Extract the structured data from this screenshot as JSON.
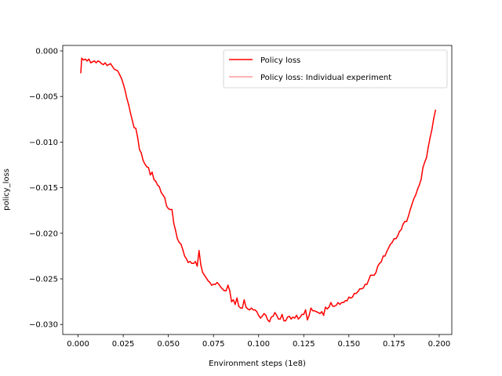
{
  "chart_data": {
    "type": "line",
    "title": "",
    "xlabel": "Environment steps (1e8)",
    "ylabel": "policy_loss",
    "xlim": [
      -0.0085,
      0.207
    ],
    "ylim": [
      -0.0311,
      0.0006
    ],
    "xticks": [
      "0.000",
      "0.025",
      "0.050",
      "0.075",
      "0.100",
      "0.125",
      "0.150",
      "0.175",
      "0.200"
    ],
    "xtick_values": [
      0,
      0.025,
      0.05,
      0.075,
      0.1,
      0.125,
      0.15,
      0.175,
      0.2
    ],
    "yticks": [
      "0.000",
      "−0.005",
      "−0.010",
      "−0.015",
      "−0.020",
      "−0.025",
      "−0.030"
    ],
    "ytick_values": [
      0,
      -0.005,
      -0.01,
      -0.015,
      -0.02,
      -0.025,
      -0.03
    ],
    "grid": false,
    "legend_position": "top-right",
    "legend": [
      "Policy loss",
      "Policy loss: Individual experiment"
    ],
    "colors": {
      "main": "#ff0000",
      "individual": "#ff9999"
    },
    "series": [
      {
        "name": "Policy loss",
        "x": [
          0.0015,
          0.002,
          0.003,
          0.004,
          0.005,
          0.006,
          0.007,
          0.008,
          0.009,
          0.01,
          0.011,
          0.012,
          0.013,
          0.014,
          0.015,
          0.016,
          0.017,
          0.018,
          0.019,
          0.02,
          0.021,
          0.022,
          0.023,
          0.024,
          0.025,
          0.026,
          0.027,
          0.028,
          0.029,
          0.03,
          0.031,
          0.032,
          0.033,
          0.034,
          0.035,
          0.036,
          0.037,
          0.038,
          0.039,
          0.04,
          0.041,
          0.042,
          0.043,
          0.044,
          0.045,
          0.046,
          0.047,
          0.048,
          0.049,
          0.05,
          0.051,
          0.052,
          0.053,
          0.054,
          0.055,
          0.056,
          0.057,
          0.058,
          0.059,
          0.06,
          0.061,
          0.062,
          0.063,
          0.064,
          0.065,
          0.066,
          0.067,
          0.068,
          0.069,
          0.07,
          0.071,
          0.072,
          0.073,
          0.074,
          0.075,
          0.076,
          0.077,
          0.078,
          0.079,
          0.08,
          0.081,
          0.082,
          0.083,
          0.084,
          0.085,
          0.086,
          0.087,
          0.088,
          0.089,
          0.09,
          0.091,
          0.092,
          0.093,
          0.094,
          0.095,
          0.096,
          0.097,
          0.098,
          0.099,
          0.1,
          0.101,
          0.102,
          0.103,
          0.104,
          0.105,
          0.106,
          0.107,
          0.108,
          0.109,
          0.11,
          0.111,
          0.112,
          0.113,
          0.114,
          0.115,
          0.116,
          0.117,
          0.118,
          0.119,
          0.12,
          0.121,
          0.122,
          0.123,
          0.124,
          0.125,
          0.126,
          0.127,
          0.128,
          0.129,
          0.13,
          0.131,
          0.132,
          0.133,
          0.134,
          0.135,
          0.136,
          0.137,
          0.138,
          0.139,
          0.14,
          0.141,
          0.142,
          0.143,
          0.144,
          0.145,
          0.146,
          0.147,
          0.148,
          0.149,
          0.15,
          0.151,
          0.152,
          0.153,
          0.154,
          0.155,
          0.156,
          0.157,
          0.158,
          0.159,
          0.16,
          0.161,
          0.162,
          0.163,
          0.164,
          0.165,
          0.166,
          0.167,
          0.168,
          0.169,
          0.17,
          0.171,
          0.172,
          0.173,
          0.174,
          0.175,
          0.176,
          0.177,
          0.178,
          0.179,
          0.18,
          0.181,
          0.182,
          0.183,
          0.184,
          0.185,
          0.186,
          0.187,
          0.188,
          0.189,
          0.19,
          0.191,
          0.192,
          0.193,
          0.194,
          0.195,
          0.196,
          0.197,
          0.198
        ],
        "values": [
          -0.0024,
          -0.0008,
          -0.001,
          -0.0009,
          -0.0011,
          -0.0009,
          -0.0013,
          -0.0012,
          -0.0011,
          -0.0013,
          -0.0011,
          -0.0012,
          -0.0014,
          -0.0015,
          -0.0013,
          -0.0016,
          -0.0015,
          -0.0014,
          -0.0017,
          -0.002,
          -0.0021,
          -0.0022,
          -0.0026,
          -0.003,
          -0.0036,
          -0.0043,
          -0.0052,
          -0.0059,
          -0.0068,
          -0.0076,
          -0.0084,
          -0.0085,
          -0.0095,
          -0.0108,
          -0.0112,
          -0.012,
          -0.0124,
          -0.0127,
          -0.0128,
          -0.0136,
          -0.0133,
          -0.0141,
          -0.0143,
          -0.0147,
          -0.0149,
          -0.0155,
          -0.0158,
          -0.0161,
          -0.017,
          -0.0173,
          -0.0174,
          -0.0174,
          -0.0189,
          -0.0197,
          -0.0206,
          -0.021,
          -0.0212,
          -0.0218,
          -0.0225,
          -0.0228,
          -0.0232,
          -0.0231,
          -0.0233,
          -0.0233,
          -0.0231,
          -0.0236,
          -0.0219,
          -0.0235,
          -0.0243,
          -0.0246,
          -0.0249,
          -0.0252,
          -0.0254,
          -0.0257,
          -0.0256,
          -0.0256,
          -0.0254,
          -0.0256,
          -0.0259,
          -0.0261,
          -0.0263,
          -0.0263,
          -0.0257,
          -0.0263,
          -0.0275,
          -0.0273,
          -0.0278,
          -0.0271,
          -0.028,
          -0.0282,
          -0.0282,
          -0.0273,
          -0.0281,
          -0.0283,
          -0.0284,
          -0.0282,
          -0.0284,
          -0.0284,
          -0.0286,
          -0.029,
          -0.0293,
          -0.0291,
          -0.0288,
          -0.029,
          -0.0295,
          -0.0297,
          -0.0292,
          -0.0291,
          -0.0287,
          -0.029,
          -0.0294,
          -0.0294,
          -0.0289,
          -0.0296,
          -0.0296,
          -0.0292,
          -0.0291,
          -0.0294,
          -0.0292,
          -0.0293,
          -0.029,
          -0.0294,
          -0.0292,
          -0.0289,
          -0.0289,
          -0.0284,
          -0.0295,
          -0.029,
          -0.0282,
          -0.0285,
          -0.0285,
          -0.0286,
          -0.0287,
          -0.0288,
          -0.0286,
          -0.029,
          -0.0281,
          -0.0283,
          -0.0281,
          -0.0276,
          -0.028,
          -0.028,
          -0.0279,
          -0.0276,
          -0.0278,
          -0.0276,
          -0.0276,
          -0.0274,
          -0.0274,
          -0.027,
          -0.0271,
          -0.027,
          -0.0266,
          -0.0266,
          -0.0264,
          -0.0261,
          -0.0261,
          -0.026,
          -0.0256,
          -0.0256,
          -0.0251,
          -0.0246,
          -0.0246,
          -0.0246,
          -0.0243,
          -0.0236,
          -0.0233,
          -0.0231,
          -0.0225,
          -0.0225,
          -0.022,
          -0.0216,
          -0.0212,
          -0.021,
          -0.0206,
          -0.0206,
          -0.0203,
          -0.0198,
          -0.0196,
          -0.019,
          -0.0187,
          -0.0187,
          -0.0181,
          -0.0174,
          -0.0168,
          -0.0162,
          -0.0158,
          -0.0152,
          -0.0147,
          -0.0141,
          -0.0128,
          -0.0122,
          -0.0117,
          -0.0105,
          -0.0095,
          -0.0086,
          -0.0074,
          -0.0065
        ]
      }
    ]
  }
}
